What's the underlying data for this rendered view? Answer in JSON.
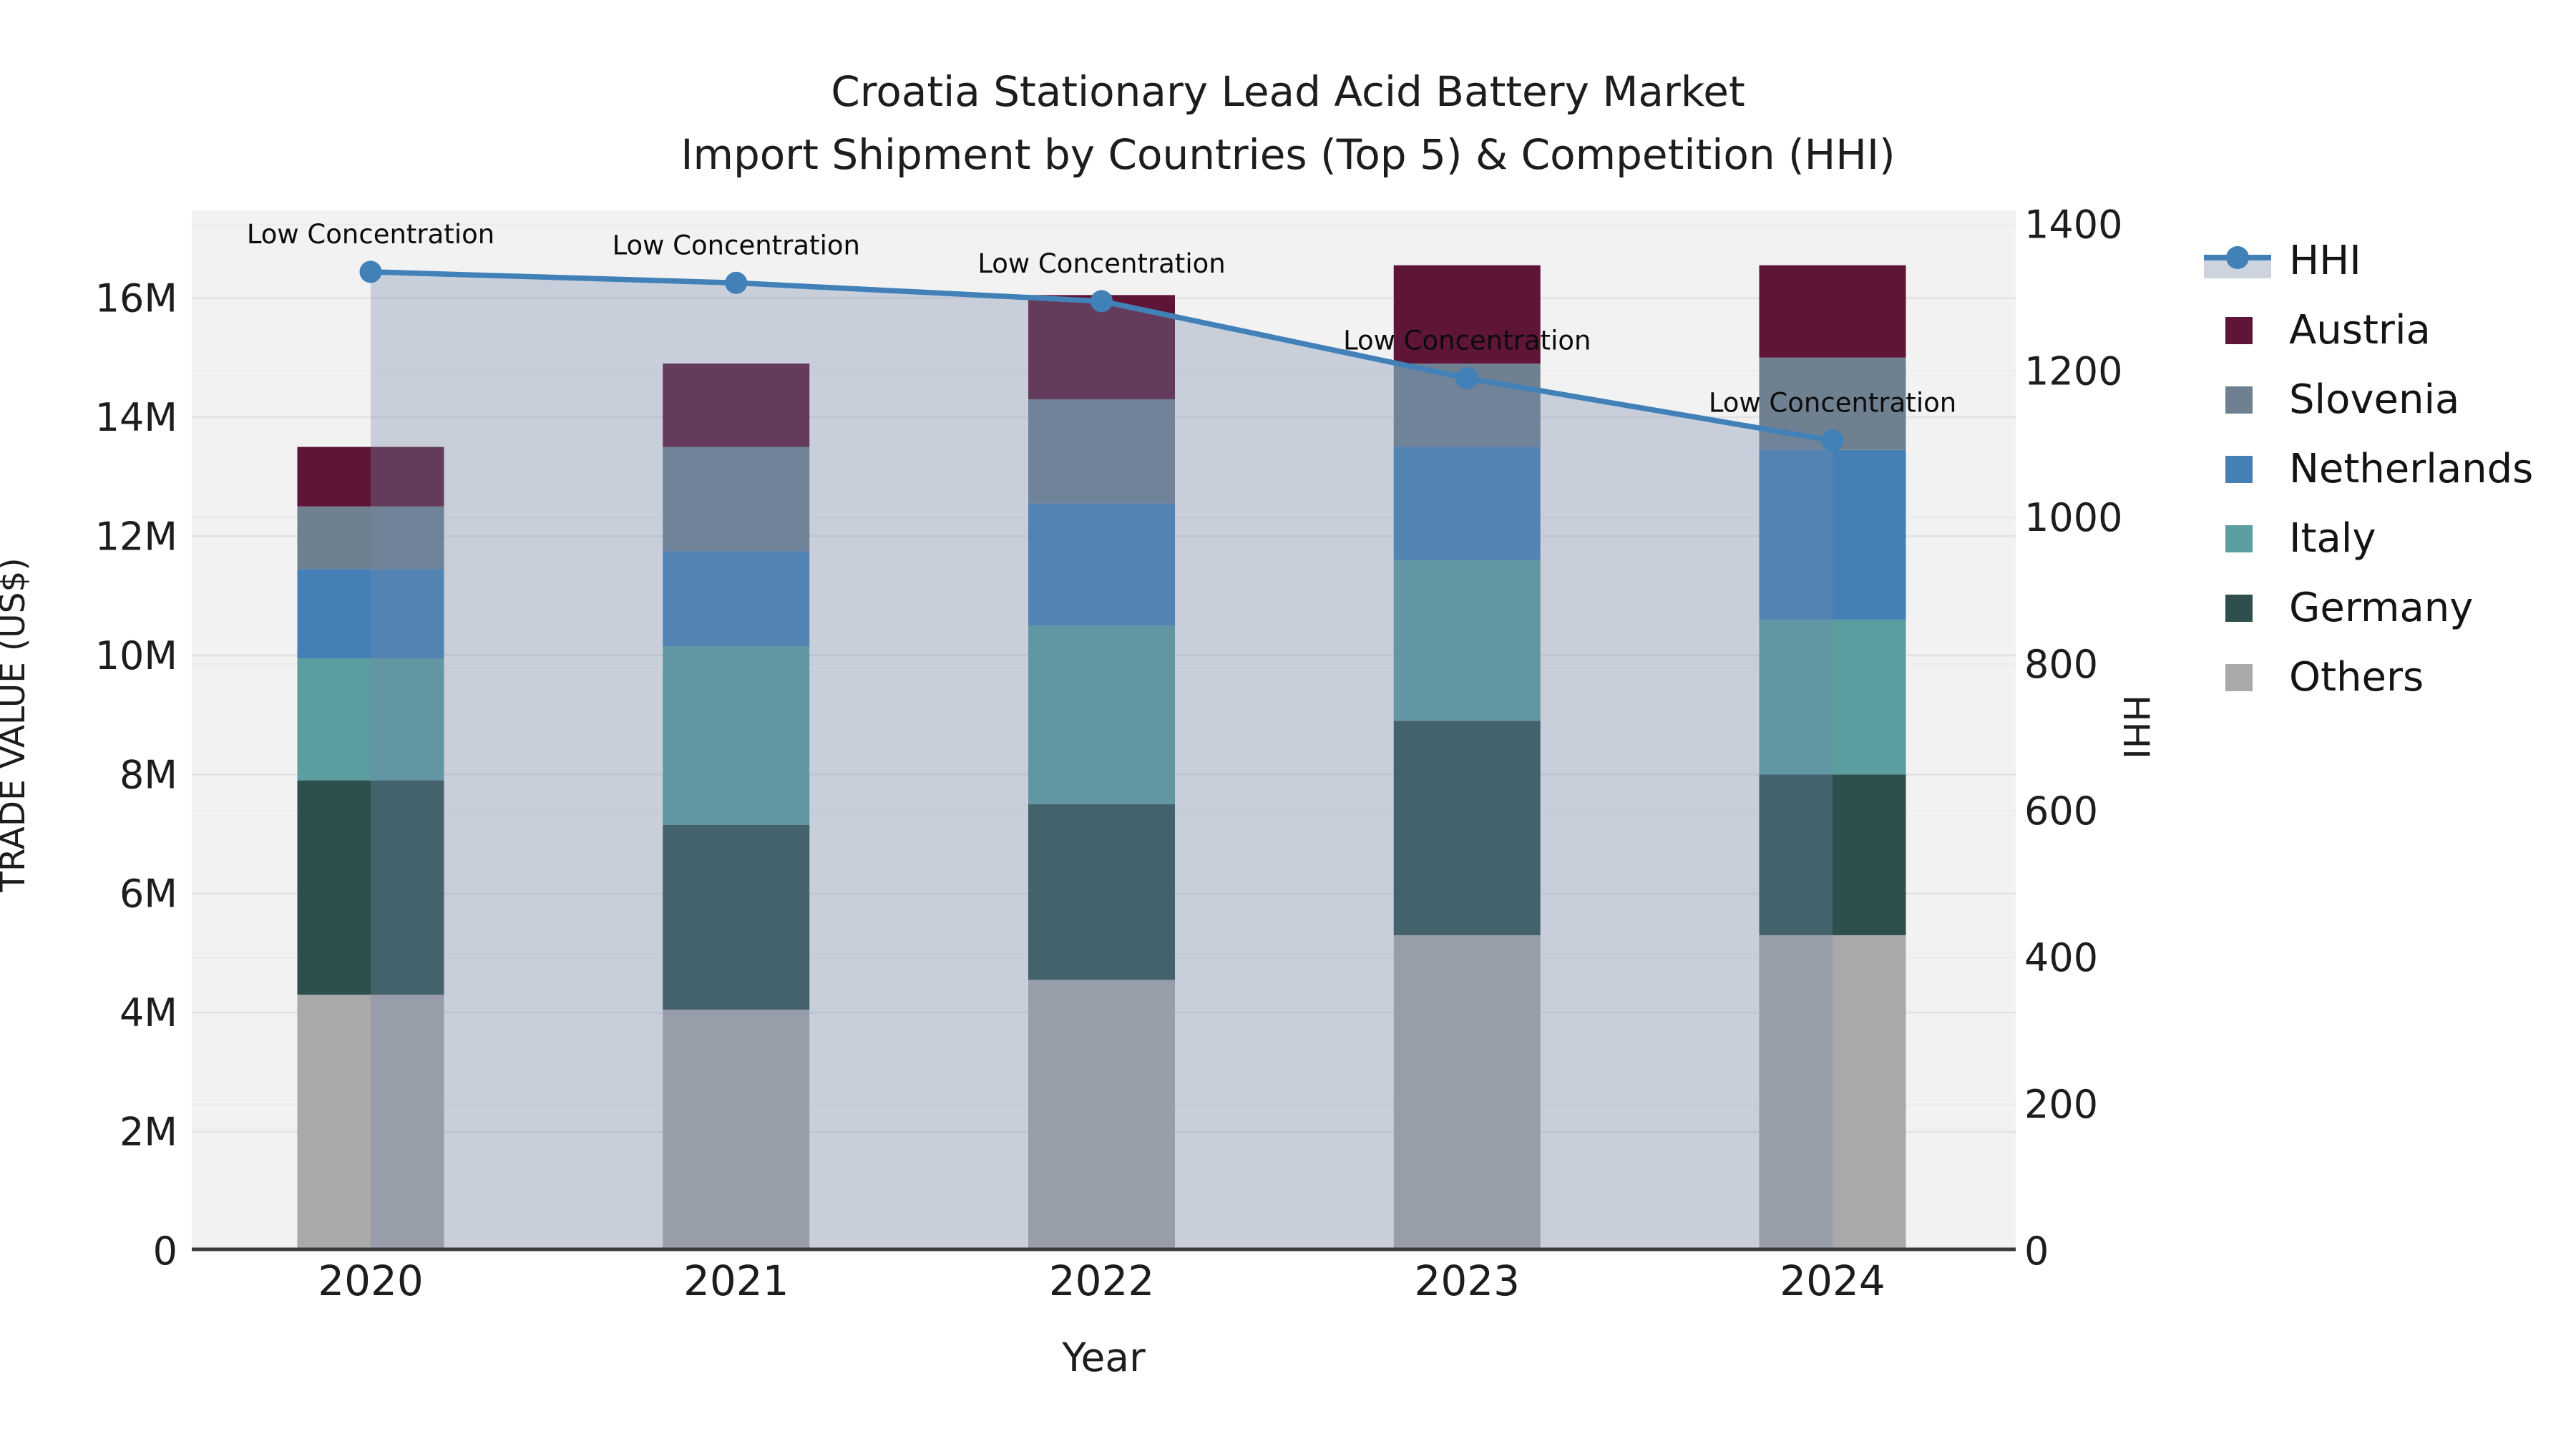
{
  "header": {
    "title_line1": "Croatia Stationary Lead Acid Battery Market",
    "title_line2": "Import Shipment by Countries (Top 5) & Competition (HHI)"
  },
  "legend": {
    "items": [
      {
        "label": "HHI",
        "type": "line",
        "color": "#4181b8",
        "band_color": "#cdd4de"
      },
      {
        "label": "Austria",
        "type": "square",
        "color": "#5e1537"
      },
      {
        "label": "Slovenia",
        "type": "square",
        "color": "#6f8191"
      },
      {
        "label": "Netherlands",
        "type": "square",
        "color": "#4480b6"
      },
      {
        "label": "Italy",
        "type": "square",
        "color": "#5c9da0"
      },
      {
        "label": "Germany",
        "type": "square",
        "color": "#2e4f4d"
      },
      {
        "label": "Others",
        "type": "square",
        "color": "#a9a9a9"
      }
    ]
  },
  "chart_data": {
    "type": "bar",
    "stacked": true,
    "title": "Croatia Stationary Lead Acid Battery Market\nImport Shipment by Countries (Top 5) & Competition (HHI)",
    "categories": [
      "2020",
      "2021",
      "2022",
      "2023",
      "2024"
    ],
    "series": [
      {
        "name": "Others",
        "color": "#a9a9a9",
        "values": [
          4300000,
          4050000,
          4550000,
          5300000,
          5300000
        ]
      },
      {
        "name": "Germany",
        "color": "#2e4f4d",
        "values": [
          3600000,
          3100000,
          2950000,
          3600000,
          2700000
        ]
      },
      {
        "name": "Italy",
        "color": "#5c9da0",
        "values": [
          2050000,
          3000000,
          3000000,
          2700000,
          2600000
        ]
      },
      {
        "name": "Netherlands",
        "color": "#4480b6",
        "values": [
          1500000,
          1600000,
          2050000,
          1900000,
          2850000
        ]
      },
      {
        "name": "Slovenia",
        "color": "#6f8191",
        "values": [
          1050000,
          1750000,
          1750000,
          1400000,
          1550000
        ]
      },
      {
        "name": "Austria",
        "color": "#5e1537",
        "values": [
          1000000,
          1400000,
          1750000,
          1650000,
          1550000
        ]
      }
    ],
    "line_series": {
      "name": "HHI",
      "type": "line",
      "axis": "right",
      "color": "#4181b8",
      "area_color": "#7388a9",
      "area_opacity": 0.33,
      "values": [
        1335,
        1320,
        1295,
        1190,
        1105
      ],
      "annotations": [
        "Low Concentration",
        "Low Concentration",
        "Low Concentration",
        "Low Concentration",
        "Low Concentration"
      ]
    },
    "xlabel": "Year",
    "ylabel_left": "TRADE VALUE (US$)",
    "ylabel_right": "HHI",
    "ylim_left": [
      0,
      17400000
    ],
    "ylim_right": [
      0,
      1413
    ],
    "yticks_left": [
      {
        "label": "0",
        "v": 0
      },
      {
        "label": "2M",
        "v": 2000000
      },
      {
        "label": "4M",
        "v": 4000000
      },
      {
        "label": "6M",
        "v": 6000000
      },
      {
        "label": "8M",
        "v": 8000000
      },
      {
        "label": "10M",
        "v": 10000000
      },
      {
        "label": "12M",
        "v": 12000000
      },
      {
        "label": "14M",
        "v": 14000000
      },
      {
        "label": "16M",
        "v": 16000000
      }
    ],
    "yticks_right": [
      {
        "label": "0",
        "v": 0
      },
      {
        "label": "200",
        "v": 200
      },
      {
        "label": "400",
        "v": 400
      },
      {
        "label": "600",
        "v": 600
      },
      {
        "label": "800",
        "v": 800
      },
      {
        "label": "1000",
        "v": 1000
      },
      {
        "label": "1200",
        "v": 1200
      },
      {
        "label": "1400",
        "v": 1400
      }
    ],
    "plot_bg": "#f2f2f3",
    "grid": true,
    "legend_position": "right-outside"
  }
}
